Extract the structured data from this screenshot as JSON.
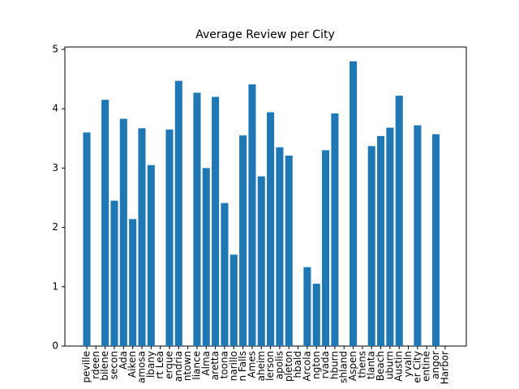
{
  "chart_data": {
    "type": "bar",
    "title": "Average Review per City",
    "categories": [
      "peville",
      "rdeen",
      "bilene",
      "secon",
      "Ada",
      "Aiken",
      "amosa",
      "lbany",
      "rt Lea",
      "erque",
      "andria",
      "ntown",
      "liance",
      "Alma",
      "aretta",
      "toona",
      "narillo",
      "n Falls",
      "Ames",
      "aheim",
      "lerson",
      "apolis",
      "pleton",
      "hbald",
      "Arcola",
      "ngton",
      "rvada",
      "hburn",
      "shland",
      "Aspen",
      "thens",
      "tlanta",
      "Beach",
      "uburn",
      "Austin",
      "yvaln",
      "er City",
      "entine",
      "angor",
      "Harbor"
    ],
    "values": [
      3.6,
      null,
      4.15,
      2.45,
      3.83,
      2.14,
      3.67,
      3.05,
      null,
      3.65,
      4.47,
      null,
      4.27,
      3.0,
      4.2,
      2.41,
      1.54,
      3.55,
      4.41,
      2.86,
      3.94,
      3.35,
      3.21,
      null,
      1.33,
      1.05,
      3.3,
      3.92,
      null,
      4.8,
      null,
      3.37,
      3.54,
      3.68,
      4.22,
      null,
      3.72,
      null,
      3.57,
      null
    ],
    "color": "#1f77b4",
    "ylim": [
      0,
      5.04
    ],
    "yticks": [
      0,
      1,
      2,
      3,
      4,
      5
    ]
  }
}
